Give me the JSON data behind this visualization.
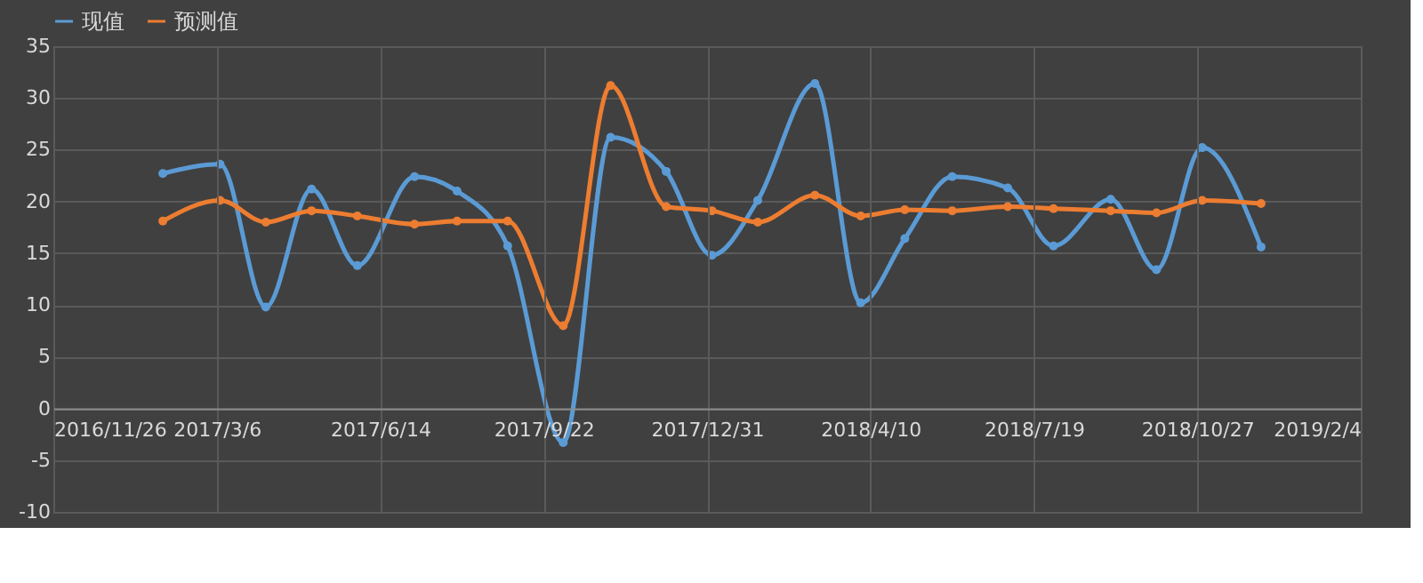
{
  "chart_data": {
    "type": "line",
    "x": [
      "2017-02-01",
      "2017-03-08",
      "2017-04-05",
      "2017-05-03",
      "2017-05-31",
      "2017-07-05",
      "2017-07-31",
      "2017-08-31",
      "2017-10-04",
      "2017-11-02",
      "2017-12-06",
      "2018-01-03",
      "2018-01-31",
      "2018-03-07",
      "2018-04-04",
      "2018-05-01",
      "2018-05-30",
      "2018-07-03",
      "2018-07-31",
      "2018-09-04",
      "2018-10-02",
      "2018-10-30",
      "2018-12-05"
    ],
    "series": [
      {
        "name": "现值",
        "color": "#5b9bd5",
        "values": [
          22.7,
          23.6,
          9.8,
          21.2,
          13.8,
          22.4,
          21.0,
          15.7,
          -3.3,
          26.2,
          22.9,
          14.8,
          20.1,
          31.4,
          10.2,
          16.4,
          22.4,
          21.3,
          15.7,
          20.2,
          13.4,
          25.2,
          15.6
        ]
      },
      {
        "name": "预测值",
        "color": "#ed7d31",
        "values": [
          18.1,
          20.1,
          18.0,
          19.1,
          18.6,
          17.8,
          18.1,
          18.1,
          8.0,
          31.2,
          19.5,
          19.1,
          18.0,
          20.6,
          18.6,
          19.2,
          19.1,
          19.5,
          19.3,
          19.1,
          18.9,
          20.1,
          19.8
        ]
      }
    ],
    "xlim": [
      "2016-11-26",
      "2019-02-04"
    ],
    "xticks": [
      {
        "value": "2016-11-26",
        "label": "2016/11/26"
      },
      {
        "value": "2017-03-06",
        "label": "2017/3/6"
      },
      {
        "value": "2017-06-14",
        "label": "2017/6/14"
      },
      {
        "value": "2017-09-22",
        "label": "2017/9/22"
      },
      {
        "value": "2017-12-31",
        "label": "2017/12/31"
      },
      {
        "value": "2018-04-10",
        "label": "2018/4/10"
      },
      {
        "value": "2018-07-19",
        "label": "2018/7/19"
      },
      {
        "value": "2018-10-27",
        "label": "2018/10/27"
      },
      {
        "value": "2019-02-04",
        "label": "2019/2/4"
      }
    ],
    "ylim": [
      -10,
      35
    ],
    "yticks": [
      -10,
      -5,
      0,
      5,
      10,
      15,
      20,
      25,
      30,
      35
    ],
    "grid": true,
    "legend": "top",
    "marker": "circle",
    "line_style": "solid"
  }
}
